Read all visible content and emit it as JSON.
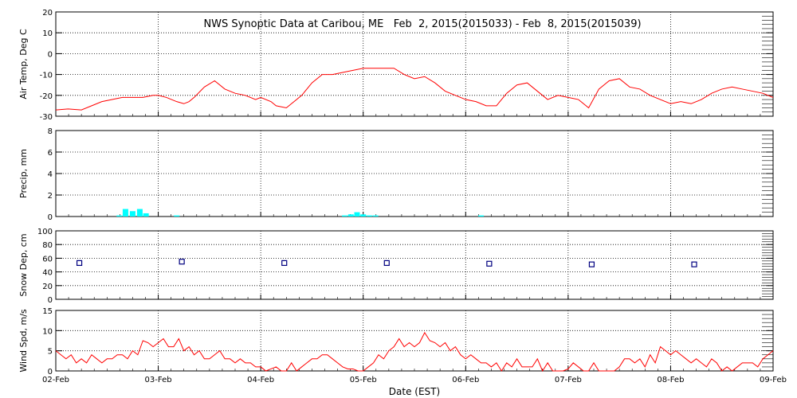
{
  "chart_data": {
    "type": "multi-panel time series",
    "title": "NWS Synoptic Data at Caribou, ME   Feb  2, 2015(2015033) - Feb  8, 2015(2015039)",
    "xlabel": "Date (EST)",
    "x_ticks": [
      "02-Feb",
      "03-Feb",
      "04-Feb",
      "05-Feb",
      "06-Feb",
      "07-Feb",
      "08-Feb",
      "09-Feb"
    ],
    "x_range_days": [
      0,
      7
    ],
    "grid": "dotted vertical at each day, horizontal at major ticks",
    "colors": {
      "temperature": "#ff0000",
      "precip": "#00ffff",
      "snow": "#000080",
      "wind": "#ff0000"
    },
    "panels": [
      {
        "type": "line",
        "ylabel": "Air Temp, Deg C",
        "ylim": [
          -30,
          20
        ],
        "yticks": [
          "20",
          "10",
          "0",
          "-10",
          "-20",
          "-30"
        ],
        "x": [
          0,
          0.12,
          0.25,
          0.35,
          0.45,
          0.55,
          0.65,
          0.75,
          0.85,
          0.95,
          1.0,
          1.08,
          1.18,
          1.25,
          1.3,
          1.35,
          1.45,
          1.55,
          1.65,
          1.75,
          1.85,
          1.95,
          2.0,
          2.1,
          2.15,
          2.25,
          2.3,
          2.4,
          2.5,
          2.6,
          2.7,
          2.8,
          2.9,
          3.0,
          3.1,
          3.2,
          3.3,
          3.4,
          3.5,
          3.6,
          3.7,
          3.8,
          3.9,
          4.0,
          4.1,
          4.2,
          4.3,
          4.4,
          4.5,
          4.6,
          4.7,
          4.8,
          4.9,
          5.0,
          5.1,
          5.2,
          5.3,
          5.4,
          5.5,
          5.6,
          5.7,
          5.8,
          5.9,
          6.0,
          6.1,
          6.2,
          6.3,
          6.4,
          6.5,
          6.6,
          6.7,
          6.8,
          6.9,
          7.0
        ],
        "y": [
          -27,
          -26.5,
          -27,
          -25,
          -23,
          -22,
          -21,
          -21,
          -21,
          -20,
          -20,
          -21,
          -23,
          -24,
          -23,
          -21,
          -16,
          -13,
          -17,
          -19,
          -20,
          -22,
          -21,
          -23,
          -25,
          -26,
          -24,
          -20,
          -14,
          -10,
          -10,
          -9,
          -8,
          -7,
          -7,
          -7,
          -7,
          -10,
          -12,
          -11,
          -14,
          -18,
          -20,
          -22,
          -23,
          -25,
          -25,
          -19,
          -15,
          -14,
          -18,
          -22,
          -20,
          -21,
          -22,
          -26,
          -17,
          -13,
          -12,
          -16,
          -17,
          -20,
          -22,
          -24,
          -23,
          -24,
          -22,
          -19,
          -17,
          -16,
          -17,
          -18,
          -19,
          -21
        ]
      },
      {
        "type": "bar",
        "ylabel": "Precip, mm",
        "ylim": [
          0,
          8
        ],
        "yticks": [
          "8",
          "6",
          "4",
          "2",
          "0"
        ],
        "x": [
          0.62,
          0.68,
          0.75,
          0.82,
          0.88,
          1.18,
          2.82,
          2.88,
          2.94,
          3.0,
          3.06,
          3.12,
          4.15
        ],
        "values": [
          0.1,
          0.7,
          0.5,
          0.7,
          0.3,
          0.1,
          0.1,
          0.2,
          0.4,
          0.2,
          0.1,
          0.1,
          0.1
        ]
      },
      {
        "type": "scatter",
        "ylabel": "Snow Dep, cm",
        "ylim": [
          0,
          100
        ],
        "yticks": [
          "100",
          "80",
          "60",
          "40",
          "20",
          "0"
        ],
        "x": [
          0.23,
          1.23,
          2.23,
          3.23,
          4.23,
          5.23,
          6.23
        ],
        "y": [
          53,
          55,
          53,
          53,
          52,
          51,
          51
        ]
      },
      {
        "type": "line",
        "ylabel": "Wind Spd, m/s",
        "ylim": [
          0,
          15
        ],
        "yticks": [
          "15",
          "10",
          "5",
          "0"
        ],
        "x": [
          0,
          0.05,
          0.1,
          0.15,
          0.2,
          0.25,
          0.3,
          0.35,
          0.4,
          0.45,
          0.5,
          0.55,
          0.6,
          0.65,
          0.7,
          0.75,
          0.8,
          0.85,
          0.9,
          0.95,
          1.0,
          1.05,
          1.1,
          1.15,
          1.2,
          1.25,
          1.3,
          1.35,
          1.4,
          1.45,
          1.5,
          1.55,
          1.6,
          1.65,
          1.7,
          1.75,
          1.8,
          1.85,
          1.9,
          1.95,
          2.0,
          2.05,
          2.1,
          2.15,
          2.2,
          2.25,
          2.3,
          2.35,
          2.4,
          2.45,
          2.5,
          2.55,
          2.6,
          2.65,
          2.7,
          2.75,
          2.8,
          2.85,
          2.9,
          2.95,
          3.0,
          3.05,
          3.1,
          3.15,
          3.2,
          3.25,
          3.3,
          3.35,
          3.4,
          3.45,
          3.5,
          3.55,
          3.6,
          3.65,
          3.7,
          3.75,
          3.8,
          3.85,
          3.9,
          3.95,
          4.0,
          4.05,
          4.1,
          4.15,
          4.2,
          4.25,
          4.3,
          4.35,
          4.4,
          4.45,
          4.5,
          4.55,
          4.6,
          4.65,
          4.7,
          4.75,
          4.8,
          4.85,
          4.9,
          4.95,
          5.0,
          5.05,
          5.1,
          5.15,
          5.2,
          5.25,
          5.3,
          5.35,
          5.4,
          5.45,
          5.5,
          5.55,
          5.6,
          5.65,
          5.7,
          5.75,
          5.8,
          5.85,
          5.9,
          5.95,
          6.0,
          6.05,
          6.1,
          6.15,
          6.2,
          6.25,
          6.3,
          6.35,
          6.4,
          6.45,
          6.5,
          6.55,
          6.6,
          6.65,
          6.7,
          6.75,
          6.8,
          6.85,
          6.9,
          6.95,
          7.0
        ],
        "y": [
          5,
          4,
          3,
          4,
          2,
          3,
          2,
          4,
          3,
          2,
          3,
          3,
          4,
          4,
          3,
          5,
          4,
          7.5,
          7,
          6,
          7,
          8,
          6,
          6,
          8,
          5,
          6,
          4,
          5,
          3,
          3,
          4,
          5,
          3,
          3,
          2,
          3,
          2,
          2,
          1,
          1,
          0,
          0.5,
          1,
          0,
          0,
          2,
          0,
          1,
          2,
          3,
          3,
          4,
          4,
          3,
          2,
          1,
          0.5,
          0.5,
          0,
          0,
          1,
          2,
          4,
          3,
          5,
          6,
          8,
          6,
          7,
          6,
          7,
          9.5,
          7.5,
          7,
          6,
          7,
          5,
          6,
          4,
          3,
          4,
          3,
          2,
          2,
          1,
          2,
          0,
          2,
          1,
          3,
          1,
          1,
          1,
          3,
          0,
          2,
          0,
          0,
          0,
          0.5,
          2,
          1,
          0,
          0,
          2,
          0,
          0,
          0,
          0,
          1,
          3,
          3,
          2,
          3,
          1,
          4,
          2,
          6,
          5,
          4,
          5,
          4,
          3,
          2,
          3,
          2,
          1,
          3,
          2,
          0,
          1,
          0,
          1,
          2,
          2,
          2,
          1,
          3,
          4,
          5
        ]
      }
    ]
  }
}
